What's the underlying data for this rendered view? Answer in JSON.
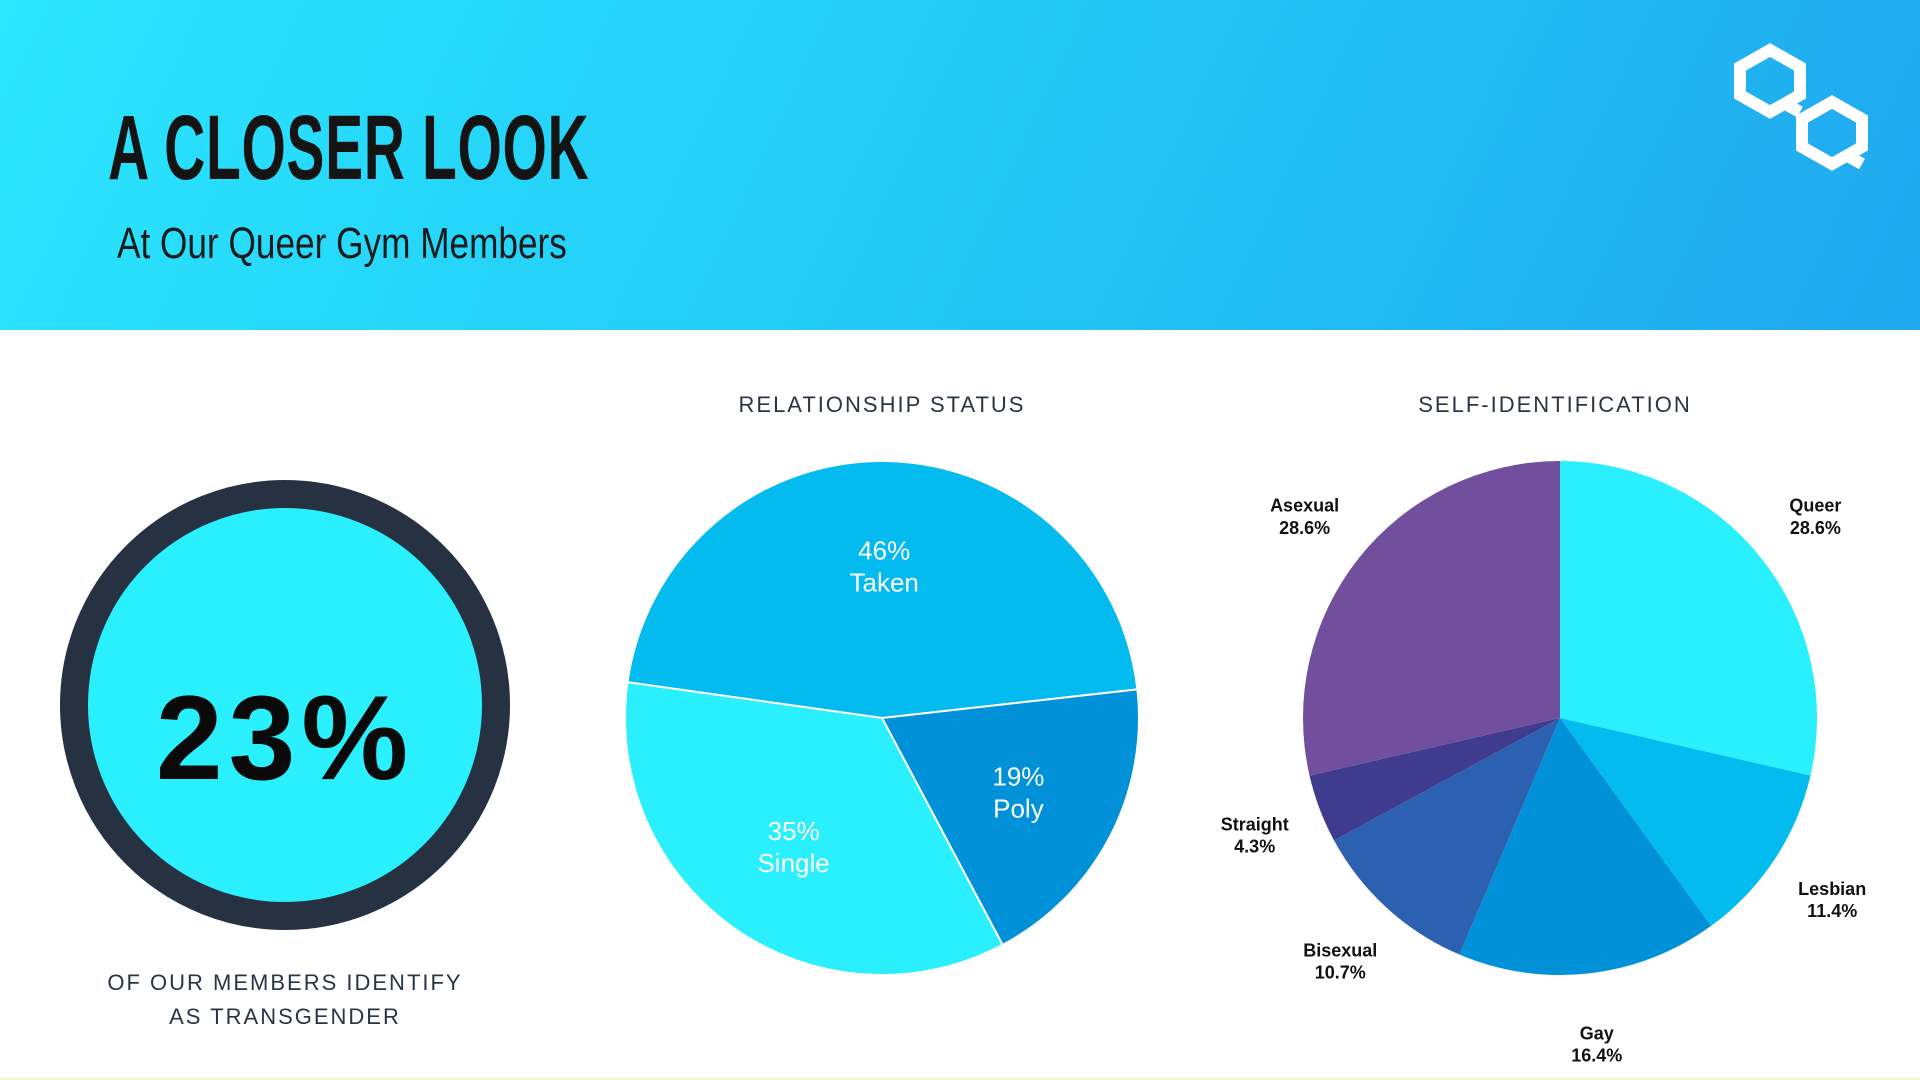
{
  "header": {
    "title": "A CLOSER LOOK",
    "subtitle": "At Our Queer Gym Members"
  },
  "logo": {
    "icon": "qq-monogram-icon",
    "color": "#ffffff"
  },
  "transgender_stat": {
    "value": "23%",
    "caption_line1": "OF OUR MEMBERS IDENTIFY",
    "caption_line2": "AS TRANSGENDER",
    "ring_color": "#263241",
    "fill_color": "#2af0fe"
  },
  "chart_data": [
    {
      "type": "pie",
      "title": "RELATIONSHIP STATUS",
      "categories": [
        "Taken",
        "Poly",
        "Single"
      ],
      "values": [
        46,
        19,
        35
      ],
      "labels": [
        "46%",
        "19%",
        "35%"
      ],
      "colors": [
        "#03bbee",
        "#0191d9",
        "#2af0fe"
      ],
      "label_placement": "inside",
      "legend": "none"
    },
    {
      "type": "pie",
      "title": "SELF-IDENTIFICATION",
      "categories": [
        "Queer",
        "Lesbian",
        "Gay",
        "Bisexual",
        "Straight",
        "Asexual"
      ],
      "values": [
        28.6,
        11.4,
        16.4,
        10.7,
        4.3,
        28.6
      ],
      "labels": [
        "28.6%",
        "11.4%",
        "16.4%",
        "10.7%",
        "4.3%",
        "28.6%"
      ],
      "colors": [
        "#2af0fe",
        "#03bbee",
        "#0191d9",
        "#2b61b0",
        "#3f3b8e",
        "#724f9d"
      ],
      "label_placement": "outside",
      "legend": "none"
    }
  ]
}
